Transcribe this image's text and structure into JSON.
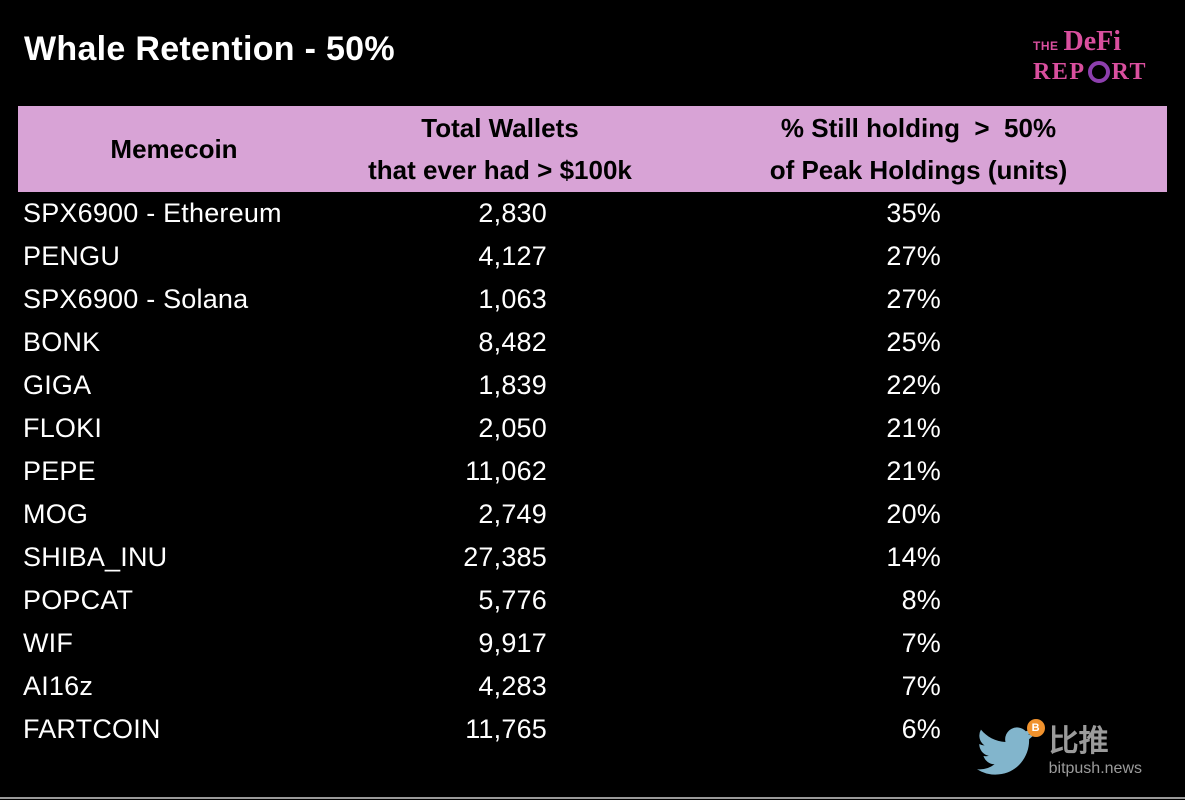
{
  "header": {
    "title": "Whale Retention - 50%"
  },
  "logo": {
    "the": "THE",
    "defi": "DeFi",
    "report_prefix": "REP",
    "report_suffix": "RT"
  },
  "table": {
    "header": {
      "memecoin": "Memecoin",
      "wallets_line1": "Total Wallets",
      "wallets_line2": "that ever had > $100k",
      "holding_line1": "% Still holding  >  50%",
      "holding_line2": "of Peak Holdings (units)"
    }
  },
  "chart_data": {
    "type": "table",
    "title": "Whale Retention - 50%",
    "columns": [
      "Memecoin",
      "Total Wallets that ever had > $100k",
      "% Still holding > 50% of Peak Holdings (units)"
    ],
    "rows": [
      {
        "memecoin": "SPX6900 - Ethereum",
        "total_wallets": "2,830",
        "pct_still_holding": "35%"
      },
      {
        "memecoin": "PENGU",
        "total_wallets": "4,127",
        "pct_still_holding": "27%"
      },
      {
        "memecoin": "SPX6900 - Solana",
        "total_wallets": "1,063",
        "pct_still_holding": "27%"
      },
      {
        "memecoin": "BONK",
        "total_wallets": "8,482",
        "pct_still_holding": "25%"
      },
      {
        "memecoin": "GIGA",
        "total_wallets": "1,839",
        "pct_still_holding": "22%"
      },
      {
        "memecoin": "FLOKI",
        "total_wallets": "2,050",
        "pct_still_holding": "21%"
      },
      {
        "memecoin": "PEPE",
        "total_wallets": "11,062",
        "pct_still_holding": "21%"
      },
      {
        "memecoin": "MOG",
        "total_wallets": "2,749",
        "pct_still_holding": "20%"
      },
      {
        "memecoin": "SHIBA_INU",
        "total_wallets": "27,385",
        "pct_still_holding": "14%"
      },
      {
        "memecoin": "POPCAT",
        "total_wallets": "5,776",
        "pct_still_holding": "8%"
      },
      {
        "memecoin": "WIF",
        "total_wallets": "9,917",
        "pct_still_holding": "7%"
      },
      {
        "memecoin": "AI16z",
        "total_wallets": "4,283",
        "pct_still_holding": "7%"
      },
      {
        "memecoin": "FARTCOIN",
        "total_wallets": "11,765",
        "pct_still_holding": "6%"
      }
    ]
  },
  "watermark": {
    "brand": "比推",
    "site": "bitpush.news",
    "badge": "B"
  },
  "colors": {
    "background": "#000000",
    "header_bg": "#d8a3d6",
    "header_text": "#000000",
    "body_text": "#ffffff",
    "logo_pink": "#d94f9e",
    "logo_purple": "#8d3fae",
    "watermark_gray": "#9b9b9b",
    "bird_blue": "#82b5cc",
    "badge_orange": "#f0922d"
  }
}
